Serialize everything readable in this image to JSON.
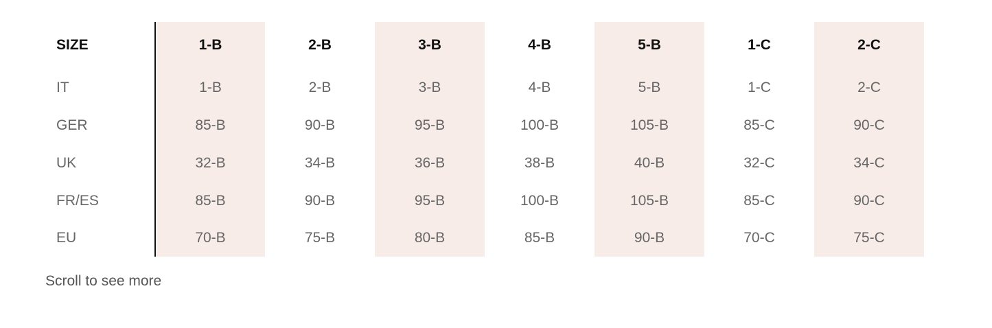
{
  "table": {
    "header_label": "SIZE",
    "columns": [
      "1-B",
      "2-B",
      "3-B",
      "4-B",
      "5-B",
      "1-C",
      "2-C"
    ],
    "rows": [
      {
        "label": "IT",
        "values": [
          "1-B",
          "2-B",
          "3-B",
          "4-B",
          "5-B",
          "1-C",
          "2-C"
        ]
      },
      {
        "label": "GER",
        "values": [
          "85-B",
          "90-B",
          "95-B",
          "100-B",
          "105-B",
          "85-C",
          "90-C"
        ]
      },
      {
        "label": "UK",
        "values": [
          "32-B",
          "34-B",
          "36-B",
          "38-B",
          "40-B",
          "32-C",
          "34-C"
        ]
      },
      {
        "label": "FR/ES",
        "values": [
          "85-B",
          "90-B",
          "95-B",
          "100-B",
          "105-B",
          "85-C",
          "90-C"
        ]
      },
      {
        "label": "EU",
        "values": [
          "70-B",
          "75-B",
          "80-B",
          "85-B",
          "90-B",
          "70-C",
          "75-C"
        ]
      }
    ]
  },
  "scroll_hint": "Scroll to see more",
  "colors": {
    "shaded_column": "#f7ece8",
    "header_text": "#111111",
    "body_text": "#666666",
    "divider": "#111111"
  }
}
